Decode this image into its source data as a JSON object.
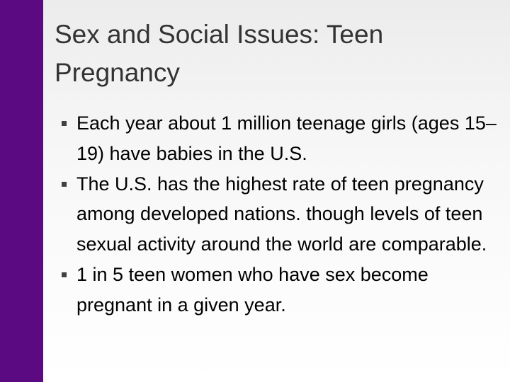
{
  "title": "Sex and Social Issues: Teen Pregnancy",
  "bullets": [
    "Each year about 1 million teenage girls (ages 15–19) have babies in the U.S.",
    "The U.S. has the highest rate of teen pregnancy among developed nations. though levels of teen sexual activity around the world are comparable.",
    "1 in 5 teen women who have sex become pregnant in a given year."
  ]
}
